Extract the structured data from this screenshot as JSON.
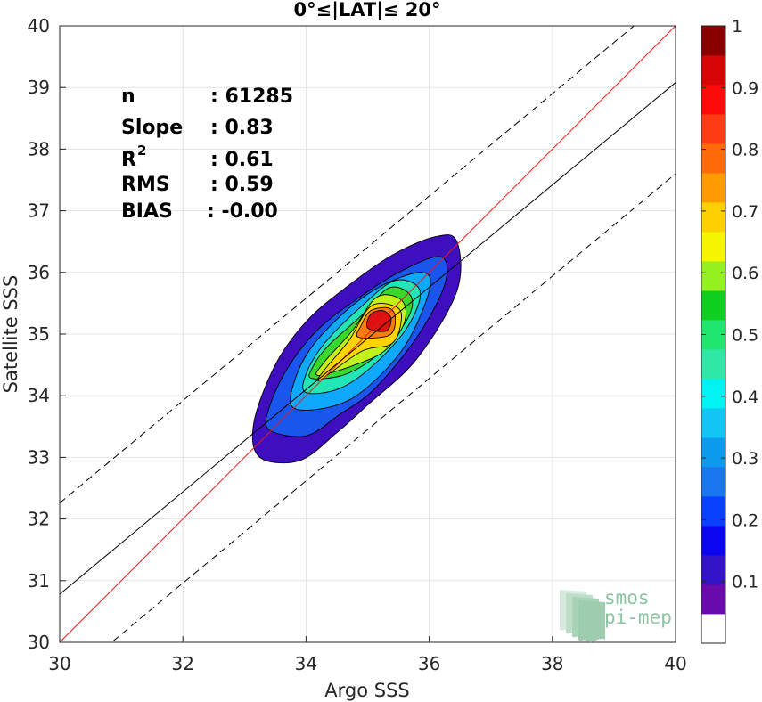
{
  "chart_data": {
    "type": "heatmap",
    "title": "0°≤|LAT|≤ 20°",
    "xlabel": "Argo SSS",
    "ylabel": "Satellite SSS",
    "xlim": [
      30,
      40
    ],
    "ylim": [
      30,
      40
    ],
    "x_ticks": [
      "30",
      "32",
      "34",
      "36",
      "38",
      "40"
    ],
    "y_ticks": [
      "30",
      "31",
      "32",
      "33",
      "34",
      "35",
      "36",
      "37",
      "38",
      "39",
      "40"
    ],
    "grid": true,
    "stats": [
      {
        "label": "n",
        "value": ": 61285"
      },
      {
        "label": "Slope",
        "value": ": 0.83"
      },
      {
        "label": "R",
        "sup": "2",
        "value": ": 0.61"
      },
      {
        "label": "RMS",
        "value": ": 0.59"
      },
      {
        "label": "BIAS",
        "value": ": -0.00"
      }
    ],
    "lines": [
      {
        "kind": "identity",
        "color": "#e41a1c",
        "x": [
          30,
          40
        ],
        "y": [
          30,
          40
        ]
      },
      {
        "kind": "regression",
        "color": "#000000",
        "x": [
          30,
          40
        ],
        "y": [
          30.78,
          39.08
        ]
      },
      {
        "kind": "regression-upper",
        "color": "#000000",
        "dash": true,
        "x": [
          30,
          40
        ],
        "y": [
          32.26,
          40.56
        ]
      },
      {
        "kind": "regression-lower",
        "color": "#000000",
        "dash": true,
        "x": [
          30,
          40
        ],
        "y": [
          29.3,
          37.6
        ]
      }
    ],
    "density_center": [
      35.2,
      35.2
    ],
    "density_levels": [
      0.05,
      0.15,
      0.25,
      0.35,
      0.45,
      0.55,
      0.65,
      0.75,
      0.85
    ],
    "density_level_colors": [
      "#3f0fbf",
      "#1a55ee",
      "#0fa8ff",
      "#21e6b5",
      "#39d82d",
      "#c3f21b",
      "#ffd400",
      "#ff7b0f",
      "#e01010"
    ],
    "colorbar": {
      "ticks": [
        "0.1",
        "0.2",
        "0.3",
        "0.4",
        "0.5",
        "0.6",
        "0.7",
        "0.8",
        "0.9",
        "1"
      ],
      "range": [
        0,
        1
      ],
      "colors": [
        "#ffffff",
        "#6a0aab",
        "#3412c8",
        "#0b06f0",
        "#0a40ff",
        "#1a76ec",
        "#0c9aed",
        "#12c6f4",
        "#00f2f2",
        "#2fe7a7",
        "#1fe66f",
        "#0fd021",
        "#94f11f",
        "#f6f600",
        "#ffd000",
        "#ff9a00",
        "#ff6b08",
        "#ff3b15",
        "#ff0a0a",
        "#d50505",
        "#8a0000"
      ]
    },
    "logo": {
      "line1": "smos",
      "line2": "pi-mep",
      "color": "#8cc4a2"
    }
  }
}
